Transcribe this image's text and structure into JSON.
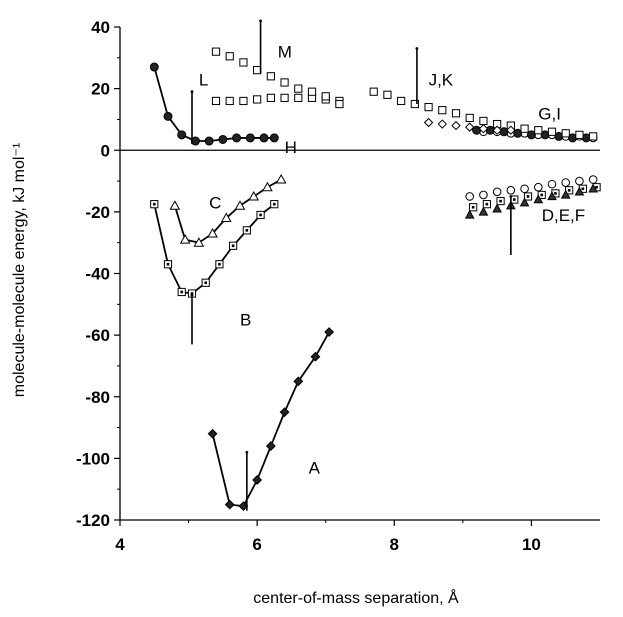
{
  "chart_data": {
    "type": "scatter",
    "xlabel": "center-of-mass separation, Å",
    "ylabel": "molecule-molecule energy, kJ mol⁻¹",
    "xlim": [
      4,
      11
    ],
    "ylim": [
      -120,
      40
    ],
    "x_ticks": [
      "4",
      "6",
      "8",
      "10"
    ],
    "y_ticks": [
      "-120",
      "-100",
      "-80",
      "-60",
      "-40",
      "-20",
      "0",
      "20",
      "40"
    ],
    "grid": false,
    "series": [
      {
        "name": "A",
        "marker": "diamond-filled",
        "line": true,
        "x": [
          5.35,
          5.6,
          5.8,
          6.0,
          6.2,
          6.4,
          6.6,
          6.85,
          7.05
        ],
        "y": [
          -92,
          -115,
          -115.5,
          -107,
          -96,
          -85,
          -75,
          -67,
          -59
        ]
      },
      {
        "name": "B",
        "marker": "square-dot",
        "line": true,
        "x": [
          4.5,
          4.7,
          4.9,
          5.05,
          5.25,
          5.45,
          5.65,
          5.85,
          6.05,
          6.25
        ],
        "y": [
          -17.5,
          -37,
          -46,
          -46.5,
          -43,
          -37,
          -31,
          -26,
          -21,
          -17.5
        ]
      },
      {
        "name": "C",
        "marker": "triangle-open",
        "line": true,
        "x": [
          4.8,
          4.95,
          5.15,
          5.35,
          5.55,
          5.75,
          5.95,
          6.15,
          6.35
        ],
        "y": [
          -18,
          -29,
          -30,
          -27,
          -22,
          -18,
          -15,
          -12,
          -9.5
        ]
      },
      {
        "name": "D",
        "marker": "circle-open",
        "line": false,
        "x": [
          9.1,
          9.3,
          9.5,
          9.7,
          9.9,
          10.1,
          10.3,
          10.5,
          10.7,
          10.9
        ],
        "y": [
          -15,
          -14.5,
          -13.5,
          -13,
          -12.5,
          -12,
          -11,
          -10.5,
          -10,
          -9.5
        ]
      },
      {
        "name": "E",
        "marker": "square-dot",
        "line": false,
        "x": [
          9.15,
          9.35,
          9.55,
          9.75,
          9.95,
          10.15,
          10.35,
          10.55,
          10.75,
          10.95
        ],
        "y": [
          -18.5,
          -17.5,
          -16.5,
          -16,
          -15,
          -14.5,
          -14,
          -13,
          -12.5,
          -12
        ]
      },
      {
        "name": "F",
        "marker": "triangle-filled",
        "line": false,
        "x": [
          9.1,
          9.3,
          9.5,
          9.7,
          9.9,
          10.1,
          10.3,
          10.5,
          10.7,
          10.9
        ],
        "y": [
          -21,
          -20,
          -19,
          -18,
          -17,
          -16,
          -15,
          -14.5,
          -13.5,
          -12.5
        ]
      },
      {
        "name": "G",
        "marker": "circle-open",
        "line": false,
        "x": [
          9.3,
          9.5,
          9.7,
          9.9,
          10.1,
          10.3,
          10.5,
          10.7,
          10.9
        ],
        "y": [
          6,
          6,
          5.5,
          5.5,
          5,
          5,
          4.5,
          4.5,
          4
        ]
      },
      {
        "name": "H",
        "marker": "circle-filled",
        "line": true,
        "x": [
          4.5,
          4.7,
          4.9,
          5.1,
          5.3,
          5.5,
          5.7,
          5.9,
          6.1,
          6.25
        ],
        "y": [
          27,
          11,
          5,
          3,
          3,
          3.5,
          4,
          4,
          4,
          4
        ]
      },
      {
        "name": "I",
        "marker": "circle-filled",
        "line": false,
        "x": [
          9.2,
          9.4,
          9.6,
          9.8,
          10.0,
          10.2,
          10.4,
          10.6,
          10.8
        ],
        "y": [
          6.5,
          6.5,
          6,
          5.5,
          5,
          5,
          4.5,
          4,
          4
        ]
      },
      {
        "name": "J",
        "marker": "square-open",
        "line": false,
        "x": [
          7.7,
          7.9,
          8.1,
          8.3,
          8.5,
          8.7,
          8.9,
          9.1,
          9.3,
          9.5,
          9.7,
          9.9,
          10.1,
          10.3,
          10.5,
          10.7,
          10.9
        ],
        "y": [
          19,
          18,
          16,
          15,
          14,
          13,
          12,
          10.5,
          9.5,
          8.5,
          8,
          7,
          6.5,
          6,
          5.5,
          5,
          4.5
        ]
      },
      {
        "name": "K",
        "marker": "diamond-open",
        "line": false,
        "x": [
          8.5,
          8.7,
          8.9,
          9.1,
          9.3,
          9.5,
          9.7
        ],
        "y": [
          9,
          8.5,
          8,
          7.5,
          7,
          6.5,
          6.5
        ]
      },
      {
        "name": "L",
        "marker": "square-open",
        "line": false,
        "x": [
          5.4,
          5.6,
          5.8,
          6.0,
          6.2,
          6.4,
          6.6,
          6.8,
          7.0,
          7.2
        ],
        "y": [
          16,
          16,
          16,
          16.5,
          17,
          17,
          17,
          17,
          16.5,
          16
        ]
      },
      {
        "name": "M",
        "marker": "square-open",
        "line": false,
        "x": [
          5.4,
          5.6,
          5.8,
          6.0,
          6.2,
          6.4,
          6.6,
          6.8,
          7.0,
          7.2
        ],
        "y": [
          32,
          30.5,
          28.5,
          26,
          24,
          22,
          20,
          19,
          17.5,
          15
        ]
      }
    ],
    "minimum_markers": [
      {
        "x": 5.05,
        "y_top": 19,
        "y_bottom": 2
      },
      {
        "x": 5.05,
        "y_top": -47,
        "y_bottom": -63
      },
      {
        "x": 5.85,
        "y_top": -98,
        "y_bottom": -117
      },
      {
        "x": 6.05,
        "y_top": 42,
        "y_bottom": 25
      },
      {
        "x": 8.33,
        "y_top": 33,
        "y_bottom": 15
      },
      {
        "x": 9.7,
        "y_top": -15,
        "y_bottom": -34
      }
    ],
    "labels": [
      {
        "text": "M",
        "x": 6.3,
        "y": 32
      },
      {
        "text": "L",
        "x": 5.15,
        "y": 23
      },
      {
        "text": "J,K",
        "x": 8.5,
        "y": 23
      },
      {
        "text": "G,I",
        "x": 10.1,
        "y": 12
      },
      {
        "text": "H",
        "x": 6.4,
        "y": 1
      },
      {
        "text": "C",
        "x": 5.3,
        "y": -17
      },
      {
        "text": "D,E,F",
        "x": 10.15,
        "y": -21
      },
      {
        "text": "B",
        "x": 5.75,
        "y": -55
      },
      {
        "text": "A",
        "x": 6.75,
        "y": -103
      }
    ]
  }
}
